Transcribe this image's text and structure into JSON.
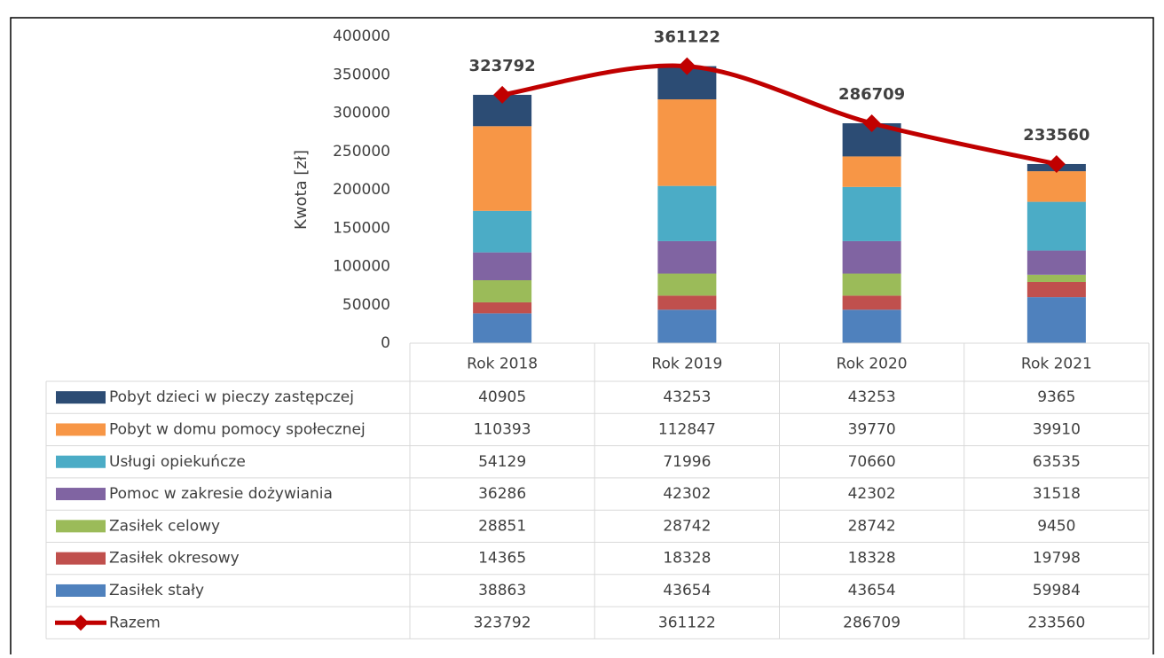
{
  "chart_data": {
    "type": "bar",
    "stacked": true,
    "y_label": "Kwota [zł]",
    "ylim": [
      0,
      400000
    ],
    "yticks": [
      0,
      50000,
      100000,
      150000,
      200000,
      250000,
      300000,
      350000,
      400000
    ],
    "categories": [
      "Rok 2018",
      "Rok 2019",
      "Rok 2020",
      "Rok 2021"
    ],
    "data_table": true,
    "series": [
      {
        "name": "Pobyt dzieci w pieczy zastępczej",
        "color": "#2c4c74",
        "values": [
          40905,
          43253,
          43253,
          9365
        ]
      },
      {
        "name": "Pobyt w domu pomocy społecznej",
        "color": "#f79646",
        "values": [
          110393,
          112847,
          39770,
          39910
        ]
      },
      {
        "name": "Usługi opiekuńcze",
        "color": "#4bacc6",
        "values": [
          54129,
          71996,
          70660,
          63535
        ]
      },
      {
        "name": "Pomoc w zakresie dożywiania",
        "color": "#8064a2",
        "values": [
          36286,
          42302,
          42302,
          31518
        ]
      },
      {
        "name": "Zasiłek celowy",
        "color": "#9bbb59",
        "values": [
          28851,
          28742,
          28742,
          9450
        ]
      },
      {
        "name": "Zasiłek okresowy",
        "color": "#c0504d",
        "values": [
          14365,
          18328,
          18328,
          19798
        ]
      },
      {
        "name": "Zasiłek stały",
        "color": "#4f81bd",
        "values": [
          38863,
          43654,
          43654,
          59984
        ]
      },
      {
        "name": "Razem",
        "color": "#c00000",
        "type": "line",
        "smooth": true,
        "data_labels": true,
        "values": [
          323792,
          361122,
          286709,
          233560
        ]
      }
    ]
  }
}
